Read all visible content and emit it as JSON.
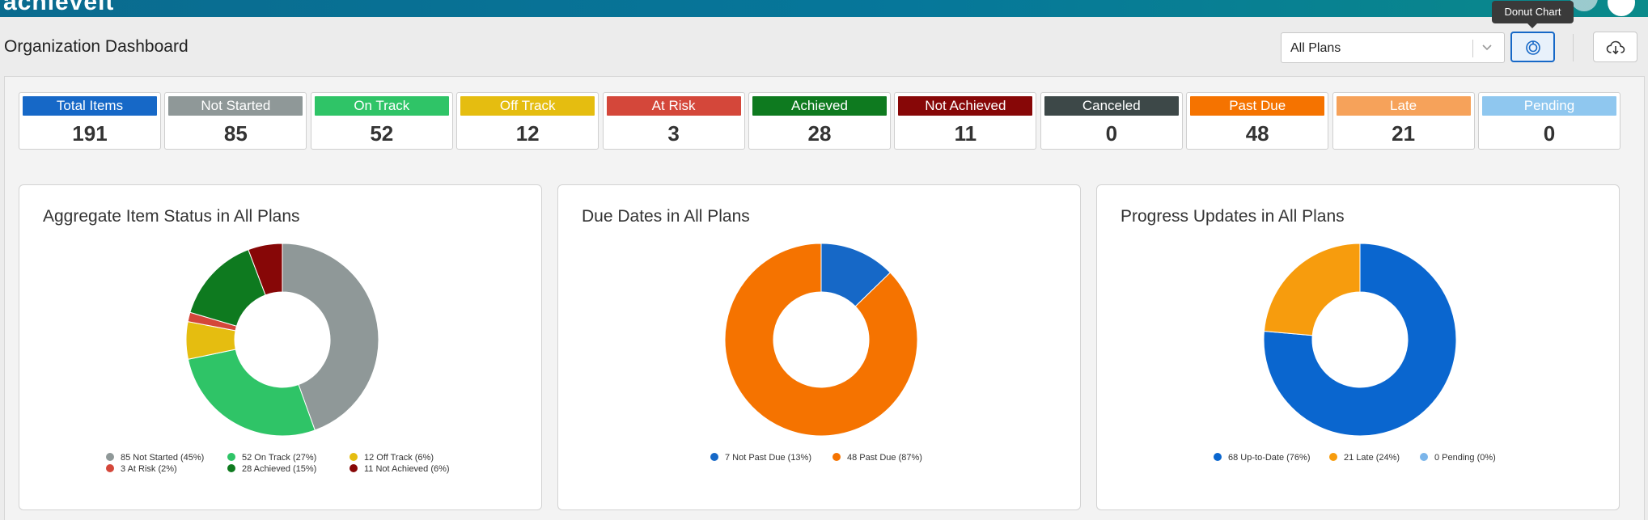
{
  "header": {
    "brand": "achieveit",
    "page_title": "Organization Dashboard",
    "plan_select": {
      "value": "All Plans"
    },
    "tooltip": "Donut Chart"
  },
  "colors": {
    "total": "#1668c7",
    "not_started": "#8f9898",
    "on_track": "#2fc467",
    "off_track": "#e5bd10",
    "at_risk": "#d4473a",
    "achieved": "#0e7a1f",
    "not_achieved": "#870707",
    "canceled": "#3d4848",
    "past_due": "#f57300",
    "late": "#f6a25a",
    "pending": "#8fc7ef",
    "not_past_due": "#1668c7",
    "up_to_date": "#0a66cf",
    "late_orange": "#f79c0d",
    "pending_light": "#7bb5ea"
  },
  "summary_cards": [
    {
      "label": "Total Items",
      "value": "191",
      "color": "#1668c7"
    },
    {
      "label": "Not Started",
      "value": "85",
      "color": "#8f9898"
    },
    {
      "label": "On Track",
      "value": "52",
      "color": "#2fc467"
    },
    {
      "label": "Off Track",
      "value": "12",
      "color": "#e5bd10"
    },
    {
      "label": "At Risk",
      "value": "3",
      "color": "#d4473a"
    },
    {
      "label": "Achieved",
      "value": "28",
      "color": "#0e7a1f"
    },
    {
      "label": "Not Achieved",
      "value": "11",
      "color": "#870707"
    },
    {
      "label": "Canceled",
      "value": "0",
      "color": "#3d4848"
    },
    {
      "label": "Past Due",
      "value": "48",
      "color": "#f57300"
    },
    {
      "label": "Late",
      "value": "21",
      "color": "#f6a25a"
    },
    {
      "label": "Pending",
      "value": "0",
      "color": "#8fc7ef"
    }
  ],
  "chart_data": [
    {
      "type": "pie",
      "title": "Aggregate Item Status in All Plans",
      "series": [
        {
          "name": "Not Started",
          "value": 85,
          "label": "85  Not Started (45%)",
          "color": "#8f9898"
        },
        {
          "name": "On Track",
          "value": 52,
          "label": "52  On Track (27%)",
          "color": "#2fc467"
        },
        {
          "name": "Off Track",
          "value": 12,
          "label": "12  Off Track (6%)",
          "color": "#e5bd10"
        },
        {
          "name": "At Risk",
          "value": 3,
          "label": "3  At Risk (2%)",
          "color": "#d4473a"
        },
        {
          "name": "Achieved",
          "value": 28,
          "label": "28  Achieved (15%)",
          "color": "#0e7a1f"
        },
        {
          "name": "Not Achieved",
          "value": 11,
          "label": "11  Not Achieved (6%)",
          "color": "#870707"
        }
      ]
    },
    {
      "type": "pie",
      "title": "Due Dates in All Plans",
      "series": [
        {
          "name": "Not Past Due",
          "value": 7,
          "label": "7  Not Past Due (13%)",
          "color": "#1668c7"
        },
        {
          "name": "Past Due",
          "value": 48,
          "label": "48  Past Due (87%)",
          "color": "#f57300"
        }
      ]
    },
    {
      "type": "pie",
      "title": "Progress Updates in All Plans",
      "series": [
        {
          "name": "Up-to-Date",
          "value": 68,
          "label": "68  Up-to-Date (76%)",
          "color": "#0a66cf"
        },
        {
          "name": "Late",
          "value": 21,
          "label": "21  Late (24%)",
          "color": "#f79c0d"
        },
        {
          "name": "Pending",
          "value": 0,
          "label": "0  Pending (0%)",
          "color": "#7bb5ea"
        }
      ]
    }
  ]
}
